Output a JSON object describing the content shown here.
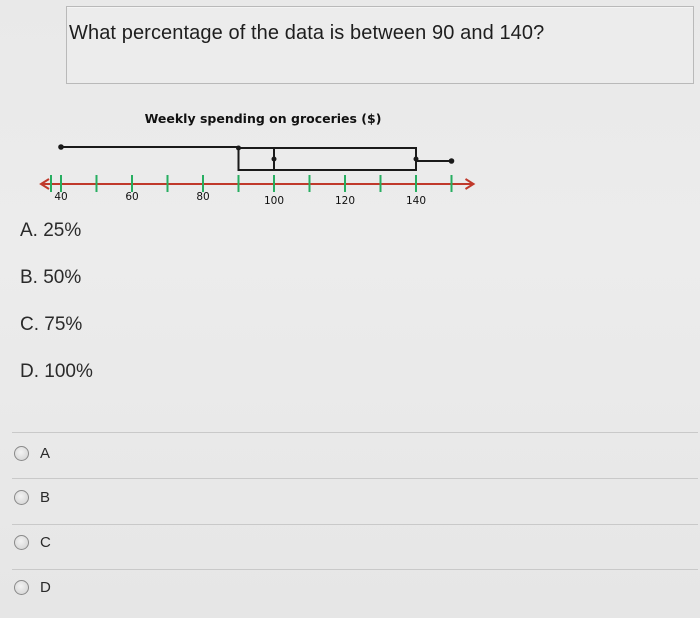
{
  "question": "What percentage of the data is between 90 and 140?",
  "chart_data": {
    "type": "boxplot",
    "title": "Weekly spending on groceries ($)",
    "xlim": [
      40,
      150
    ],
    "ticks": [
      40,
      50,
      60,
      70,
      80,
      90,
      100,
      110,
      120,
      130,
      140,
      150
    ],
    "tick_labels": [
      {
        "value": 40,
        "label": "40"
      },
      {
        "value": 60,
        "label": "60"
      },
      {
        "value": 80,
        "label": "80"
      },
      {
        "value": 100,
        "label": "100"
      },
      {
        "value": 120,
        "label": "120"
      },
      {
        "value": 140,
        "label": "140"
      }
    ],
    "min": 40,
    "q1": 90,
    "median": 100,
    "q3": 140,
    "max": 150
  },
  "choices": [
    {
      "text": "A. 25%"
    },
    {
      "text": "B. 50%"
    },
    {
      "text": "C. 75%"
    },
    {
      "text": "D. 100%"
    }
  ],
  "options": [
    {
      "label": "A"
    },
    {
      "label": "B"
    },
    {
      "label": "C"
    },
    {
      "label": "D"
    }
  ],
  "colors": {
    "axis_line": "#c0392b",
    "tick_mark": "#27ae60",
    "box": "#1a1a1a"
  }
}
